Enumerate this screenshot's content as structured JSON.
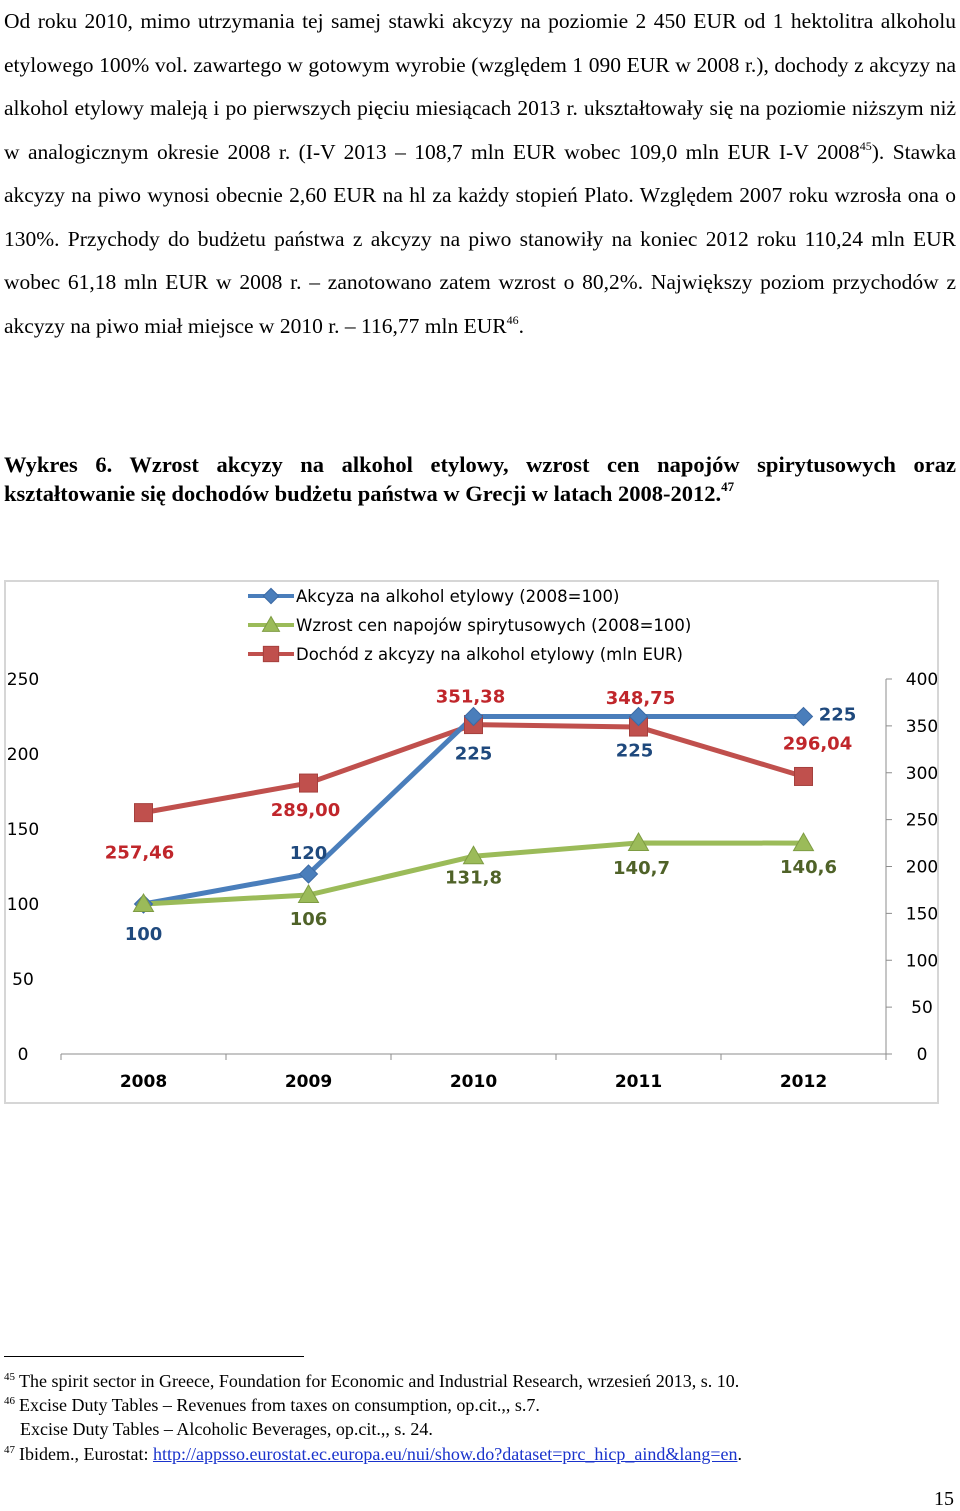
{
  "body": {
    "p1": "Od roku 2010, mimo utrzymania tej samej stawki akcyzy na poziomie 2 450 EUR od 1 hektolitra alkoholu etylowego 100% vol. zawartego w gotowym wyrobie (względem 1 090 EUR w 2008 r.), dochody z akcyzy na alkohol etylowy maleją i po pierwszych pięciu miesiącach 2013 r. ukształtowały się na poziomie niższym niż w analogicznym okresie 2008 r. (I-V 2013 – 108,7 mln EUR wobec 109,0 mln EUR I-V 2008",
    "ref45": "45",
    "p2": "). Stawka akcyzy na piwo wynosi obecnie 2,60 EUR na hl za każdy stopień Plato. Względem 2007 roku wzrosła ona o 130%. Przychody do budżetu państwa z akcyzy na piwo stanowiły na koniec 2012 roku 110,24 mln EUR wobec 61,18 mln EUR w 2008 r. – zanotowano zatem wzrost o 80,2%. Największy poziom przychodów z akcyzy na piwo miał miejsce w 2010 r. – 116,77 mln EUR",
    "ref46": "46",
    "p3": "."
  },
  "caption": {
    "text": "Wykres 6. Wzrost akcyzy na alkohol etylowy, wzrost cen napojów spirytusowych oraz kształtowanie się dochodów budżetu państwa w Grecji w latach 2008-2012.",
    "ref47": "47"
  },
  "chart_data": {
    "type": "line",
    "categories": [
      "2008",
      "2009",
      "2010",
      "2011",
      "2012"
    ],
    "ylim_left": [
      0,
      250
    ],
    "yticks_left": [
      "0",
      "50",
      "100",
      "150",
      "200",
      "250"
    ],
    "ylim_right": [
      0,
      400
    ],
    "yticks_right": [
      "0",
      "50",
      "100",
      "150",
      "200",
      "250",
      "300",
      "350",
      "400"
    ],
    "legend_position": "top",
    "grid": false,
    "series": [
      {
        "name": "Akcyza na alkohol etylowy (2008=100)",
        "axis": "left",
        "marker": "diamond",
        "color": "#4a7ebb",
        "label_color": "#1f497d",
        "values": [
          100,
          120,
          225,
          225,
          225
        ],
        "labels": [
          "100",
          "120",
          "225",
          "225",
          "225"
        ]
      },
      {
        "name": "Wzrost cen napojów spirytusowych (2008=100)",
        "axis": "left",
        "marker": "triangle",
        "color": "#9bbb59",
        "label_color": "#4f6228",
        "values": [
          100,
          106,
          131.8,
          140.7,
          140.6
        ],
        "labels": [
          "",
          "106",
          "131,8",
          "140,7",
          "140,6"
        ]
      },
      {
        "name": "Dochód z akcyzy na alkohol etylowy (mln EUR)",
        "axis": "right",
        "marker": "square",
        "color": "#c0504d",
        "label_color": "#c0262b",
        "values": [
          257.46,
          289.0,
          351.38,
          348.75,
          296.04
        ],
        "labels": [
          "257,46",
          "289,00",
          "351,38",
          "348,75",
          "296,04"
        ]
      }
    ]
  },
  "footnotes": [
    {
      "num": "45",
      "text": "The spirit sector in Greece, Foundation for Economic and Industrial Research, wrzesień 2013, s. 10."
    },
    {
      "num": "46",
      "text": "Excise Duty Tables – Revenues from taxes on consumption, op.cit.,, s.7."
    },
    {
      "num": "",
      "text": "Excise Duty Tables – Alcoholic Beverages, op.cit.,, s. 24."
    },
    {
      "num": "47",
      "text": "Ibidem., Eurostat: ",
      "link": "http://appsso.eurostat.ec.europa.eu/nui/show.do?dataset=prc_hicp_aind&lang=en",
      "after": "."
    }
  ],
  "page_number": "15"
}
